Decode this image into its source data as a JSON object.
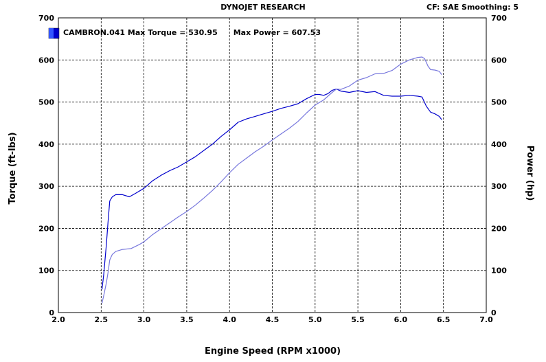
{
  "header": {
    "center": "DYNOJET RESEARCH",
    "right": "CF: SAE  Smoothing: 5"
  },
  "legend": {
    "text": "CAMBRON.041 Max Torque = 530.95      Max Power = 607.53",
    "swatch_color": "#0000cc"
  },
  "chart_data": {
    "type": "line",
    "xlabel": "Engine Speed (RPM x1000)",
    "ylabel_left": "Torque (ft-lbs)",
    "ylabel_right": "Power (hp)",
    "xlim": [
      2.0,
      7.0
    ],
    "ylim": [
      0,
      700
    ],
    "x_ticks": [
      "2.0",
      "2.5",
      "3.0",
      "3.5",
      "4.0",
      "4.5",
      "5.0",
      "5.5",
      "6.0",
      "6.5",
      "7.0"
    ],
    "y_ticks_left": [
      "0",
      "100",
      "200",
      "300",
      "400",
      "500",
      "600",
      "700"
    ],
    "y_ticks_right": [
      "0",
      "100",
      "200",
      "300",
      "400",
      "500",
      "600",
      "700"
    ],
    "grid": true,
    "series": [
      {
        "name": "Torque",
        "color": "#0000cc",
        "points": [
          [
            2.51,
            55
          ],
          [
            2.53,
            90
          ],
          [
            2.56,
            160
          ],
          [
            2.58,
            215
          ],
          [
            2.6,
            265
          ],
          [
            2.63,
            275
          ],
          [
            2.67,
            280
          ],
          [
            2.75,
            280
          ],
          [
            2.83,
            275
          ],
          [
            2.9,
            283
          ],
          [
            3.0,
            295
          ],
          [
            3.1,
            313
          ],
          [
            3.2,
            326
          ],
          [
            3.3,
            337
          ],
          [
            3.4,
            346
          ],
          [
            3.5,
            358
          ],
          [
            3.6,
            370
          ],
          [
            3.7,
            385
          ],
          [
            3.8,
            400
          ],
          [
            3.9,
            418
          ],
          [
            4.0,
            434
          ],
          [
            4.1,
            452
          ],
          [
            4.2,
            460
          ],
          [
            4.3,
            466
          ],
          [
            4.4,
            472
          ],
          [
            4.5,
            478
          ],
          [
            4.6,
            485
          ],
          [
            4.7,
            490
          ],
          [
            4.8,
            496
          ],
          [
            4.9,
            508
          ],
          [
            5.0,
            518
          ],
          [
            5.05,
            518
          ],
          [
            5.1,
            516
          ],
          [
            5.15,
            520
          ],
          [
            5.2,
            528
          ],
          [
            5.25,
            531
          ],
          [
            5.3,
            526
          ],
          [
            5.4,
            523
          ],
          [
            5.5,
            527
          ],
          [
            5.6,
            523
          ],
          [
            5.7,
            525
          ],
          [
            5.8,
            516
          ],
          [
            5.9,
            514
          ],
          [
            6.0,
            514
          ],
          [
            6.1,
            516
          ],
          [
            6.2,
            514
          ],
          [
            6.25,
            512
          ],
          [
            6.3,
            490
          ],
          [
            6.35,
            476
          ],
          [
            6.4,
            472
          ],
          [
            6.45,
            466
          ],
          [
            6.48,
            458
          ]
        ]
      },
      {
        "name": "Power",
        "color": "#7777dd",
        "points": [
          [
            2.51,
            22
          ],
          [
            2.53,
            40
          ],
          [
            2.56,
            70
          ],
          [
            2.58,
            95
          ],
          [
            2.6,
            125
          ],
          [
            2.63,
            138
          ],
          [
            2.67,
            145
          ],
          [
            2.75,
            150
          ],
          [
            2.85,
            152
          ],
          [
            2.95,
            162
          ],
          [
            3.0,
            168
          ],
          [
            3.1,
            185
          ],
          [
            3.2,
            199
          ],
          [
            3.3,
            213
          ],
          [
            3.4,
            227
          ],
          [
            3.5,
            240
          ],
          [
            3.6,
            255
          ],
          [
            3.7,
            272
          ],
          [
            3.8,
            290
          ],
          [
            3.9,
            310
          ],
          [
            4.0,
            332
          ],
          [
            4.1,
            352
          ],
          [
            4.2,
            367
          ],
          [
            4.3,
            382
          ],
          [
            4.4,
            395
          ],
          [
            4.5,
            410
          ],
          [
            4.6,
            424
          ],
          [
            4.7,
            438
          ],
          [
            4.8,
            454
          ],
          [
            4.9,
            474
          ],
          [
            5.0,
            493
          ],
          [
            5.1,
            505
          ],
          [
            5.2,
            523
          ],
          [
            5.25,
            531
          ],
          [
            5.3,
            530
          ],
          [
            5.4,
            538
          ],
          [
            5.5,
            552
          ],
          [
            5.6,
            558
          ],
          [
            5.7,
            567
          ],
          [
            5.8,
            568
          ],
          [
            5.9,
            575
          ],
          [
            6.0,
            590
          ],
          [
            6.1,
            600
          ],
          [
            6.2,
            606
          ],
          [
            6.25,
            607
          ],
          [
            6.28,
            603
          ],
          [
            6.32,
            585
          ],
          [
            6.35,
            577
          ],
          [
            6.4,
            576
          ],
          [
            6.45,
            573
          ],
          [
            6.48,
            565
          ]
        ]
      }
    ]
  }
}
